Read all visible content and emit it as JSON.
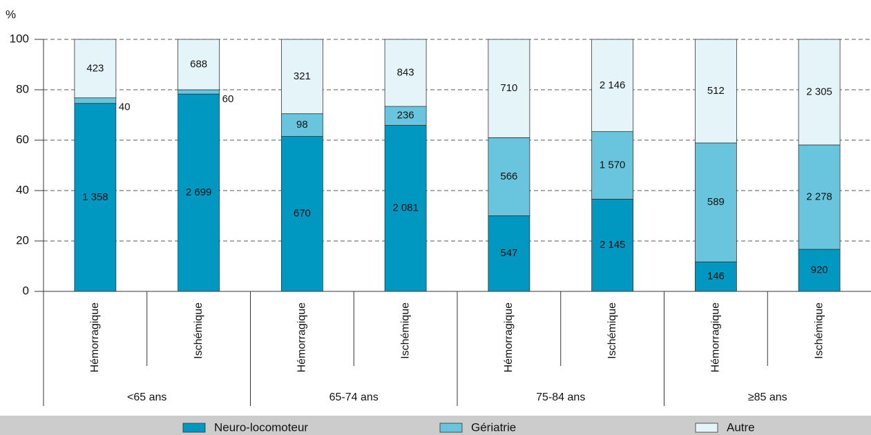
{
  "chart_data": {
    "type": "bar",
    "stacked": true,
    "y_label": "%",
    "categories": [
      "Hémorragique",
      "Ischémique",
      "Hémorragique",
      "Ischémique",
      "Hémorragique",
      "Ischémique",
      "Hémorragique",
      "Ischémique"
    ],
    "groups": [
      "<65 ans",
      "65-74 ans",
      "75-84 ans",
      "≥85 ans"
    ],
    "series": [
      {
        "name": "Neuro-locomoteur",
        "color": "#0098c0",
        "label_color": "#ffffff",
        "values": [
          74.6,
          78.3,
          61.5,
          65.9,
          30.0,
          36.6,
          11.7,
          16.7
        ],
        "labels": [
          "1 358",
          "2 699",
          "670",
          "2 081",
          "547",
          "2 145",
          "146",
          "920"
        ]
      },
      {
        "name": "Gériatrie",
        "color": "#68c5dd",
        "label_color": "#111111",
        "values": [
          2.2,
          1.7,
          9.0,
          7.5,
          31.0,
          26.8,
          47.2,
          41.4
        ],
        "labels": [
          "40",
          "60",
          "98",
          "236",
          "566",
          "1 570",
          "589",
          "2 278"
        ]
      },
      {
        "name": "Autre",
        "color": "#e4f4f9",
        "label_color": "#111111",
        "values": [
          23.2,
          20.0,
          29.5,
          26.6,
          39.0,
          36.6,
          41.1,
          41.9
        ],
        "labels": [
          "423",
          "688",
          "321",
          "843",
          "710",
          "2 146",
          "512",
          "2 305"
        ]
      }
    ],
    "ylim": [
      0,
      100
    ],
    "yticks": [
      0,
      20,
      40,
      60,
      80,
      100
    ],
    "grid": true,
    "legend": "bottom"
  }
}
